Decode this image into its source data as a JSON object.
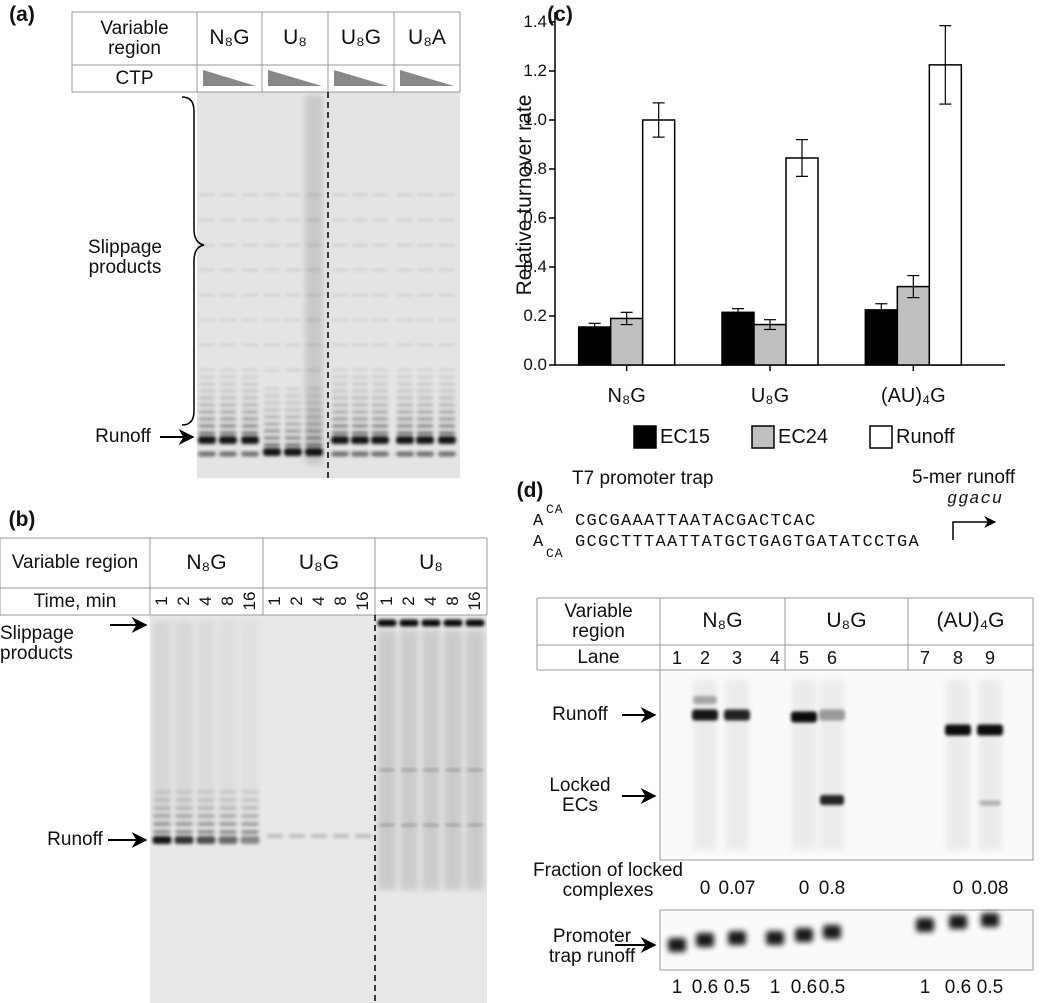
{
  "panel_a": {
    "label": "(a)",
    "header": [
      "Variable region",
      "N₈G",
      "U₈",
      "U₈G",
      "U₈A"
    ],
    "row2_label": "CTP",
    "slippage": "Slippage products",
    "runoff": "Runoff"
  },
  "panel_b": {
    "label": "(b)",
    "header": [
      "Variable region",
      "N₈G",
      "U₈G",
      "U₈"
    ],
    "time_label": "Time, min",
    "lanes": [
      1,
      2,
      4,
      8,
      16,
      1,
      2,
      4,
      8,
      16,
      1,
      2,
      4,
      8,
      16
    ],
    "slippage": "Slippage products",
    "runoff": "Runoff"
  },
  "chart_data": {
    "type": "bar",
    "label": "(c)",
    "y_label": "Relative turnover rate",
    "categories": [
      "N₈G",
      "U₈G",
      "(AU)₄G"
    ],
    "series": [
      {
        "name": "EC15",
        "color": "#000000",
        "values": [
          0.155,
          0.215,
          0.225
        ],
        "errors": [
          0.015,
          0.015,
          0.025
        ]
      },
      {
        "name": "EC24",
        "color": "#c0c0c0",
        "values": [
          0.19,
          0.165,
          0.32
        ],
        "errors": [
          0.025,
          0.02,
          0.045
        ]
      },
      {
        "name": "Runoff",
        "color": "#ffffff",
        "values": [
          1.0,
          0.845,
          1.225
        ],
        "errors": [
          0.07,
          0.075,
          0.16
        ]
      }
    ],
    "ylim": [
      0,
      1.4
    ],
    "yticks": [
      {
        "value": 0,
        "label": "0.0"
      },
      0.2,
      0.4,
      0.6,
      0.8,
      {
        "value": 1,
        "label": "1.0"
      },
      1.2,
      1.4
    ],
    "legend": "bottom"
  },
  "panel_d": {
    "label": "(d)",
    "promoter_label": "T7 promoter trap",
    "runoff_label": "5-mer runoff",
    "runoff_seq": "ggacu",
    "seq_top": {
      "prefix": "A",
      "loop": "CA",
      "sequence": "CGCGAAATTAATACGACTCAC"
    },
    "seq_bottom": {
      "prefix": "A",
      "loop": "CA",
      "sequence": "GCGCTTTAATTATGCTGAGTGATATCCTGA"
    },
    "header": [
      "Variable region",
      "N₈G",
      "U₈G",
      "(AU)₄G"
    ],
    "lane_label": "Lane",
    "lanes": [
      1,
      2,
      3,
      4,
      5,
      6,
      7,
      8,
      9
    ],
    "runoff": "Runoff",
    "locked": "Locked ECs",
    "fraction_label": "Fraction of locked complexes",
    "fractions": [
      0,
      0.07,
      0,
      0.8,
      0,
      0.08
    ],
    "trap_label": "Promoter trap runoff",
    "trap_values": [
      1,
      0.6,
      0.5,
      1,
      0.6,
      0.5,
      1,
      0.6,
      0.5
    ]
  }
}
